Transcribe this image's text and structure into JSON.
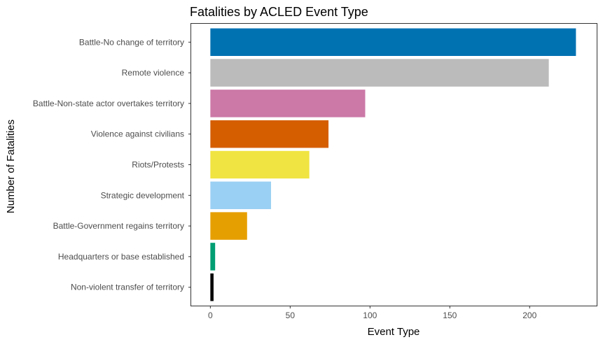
{
  "chart_data": {
    "type": "bar",
    "orientation": "horizontal",
    "title": "Fatalities by ACLED Event Type",
    "xlabel": "Event Type",
    "ylabel": "Number of Fatalities",
    "xlim": [
      -12,
      242
    ],
    "x_ticks": [
      0,
      50,
      100,
      150,
      200
    ],
    "grid": false,
    "legend": "none",
    "categories": [
      "Battle-No change of territory",
      "Remote violence",
      "Battle-Non-state actor overtakes territory",
      "Violence against civilians",
      "Riots/Protests",
      "Strategic development",
      "Battle-Government regains territory",
      "Headquarters or base established",
      "Non-violent transfer of territory"
    ],
    "values": [
      229,
      212,
      97,
      74,
      62,
      38,
      23,
      3,
      2
    ],
    "colors": [
      "#0072B2",
      "#BBBBBB",
      "#CC79A7",
      "#D55E00",
      "#F0E442",
      "#9AD0F3",
      "#E69F00",
      "#009E73",
      "#000000"
    ]
  }
}
